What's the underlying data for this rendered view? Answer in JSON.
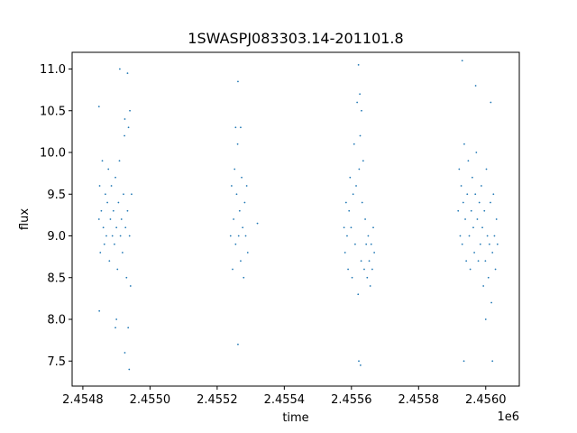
{
  "chart_data": {
    "type": "scatter",
    "title": "1SWASPJ083303.14-201101.8",
    "xlabel": "time",
    "ylabel": "flux",
    "x_offset_label": "1e6",
    "xlim": [
      2454768,
      2456100
    ],
    "ylim": [
      7.2,
      11.2
    ],
    "x_ticks": [
      2454800,
      2455000,
      2455200,
      2455400,
      2455600,
      2455800,
      2456000
    ],
    "x_tick_labels": [
      "2.4548",
      "2.4550",
      "2.4552",
      "2.4554",
      "2.4556",
      "2.4558",
      "2.4560"
    ],
    "y_ticks": [
      7.5,
      8.0,
      8.5,
      9.0,
      9.5,
      10.0,
      10.5,
      11.0
    ],
    "y_tick_labels": [
      "7.5",
      "8.0",
      "8.5",
      "9.0",
      "9.5",
      "10.0",
      "10.5",
      "11.0"
    ],
    "grid": false,
    "legend": "none",
    "series": [
      {
        "color": "#1f77b4",
        "marker": "point",
        "x": [
          2454848,
          2454850,
          2454852,
          2454855,
          2454858,
          2454861,
          2454864,
          2454867,
          2454870,
          2454873,
          2454876,
          2454879,
          2454882,
          2454885,
          2454888,
          2454891,
          2454894,
          2454897,
          2454900,
          2454903,
          2454906,
          2454909,
          2454912,
          2454915,
          2454918,
          2454921,
          2454924,
          2454927,
          2454930,
          2454933,
          2454936,
          2454939,
          2454942,
          2454945,
          2454848,
          2454849,
          2454897,
          2454910,
          2454925,
          2454933,
          2454940,
          2454900,
          2454925,
          2454935,
          2454938,
          2455240,
          2455243,
          2455246,
          2455249,
          2455252,
          2455255,
          2455258,
          2455261,
          2455264,
          2455267,
          2455270,
          2455273,
          2455276,
          2455279,
          2455282,
          2455285,
          2455288,
          2455291,
          2455320,
          2455255,
          2455262,
          2455270,
          2455262,
          2455578,
          2455581,
          2455584,
          2455587,
          2455590,
          2455593,
          2455596,
          2455599,
          2455602,
          2455605,
          2455608,
          2455611,
          2455614,
          2455617,
          2455620,
          2455623,
          2455626,
          2455629,
          2455632,
          2455635,
          2455638,
          2455641,
          2455644,
          2455647,
          2455650,
          2455653,
          2455656,
          2455659,
          2455662,
          2455665,
          2455668,
          2455621,
          2455625,
          2455630,
          2455622,
          2455627,
          2455918,
          2455921,
          2455924,
          2455927,
          2455930,
          2455933,
          2455936,
          2455939,
          2455942,
          2455945,
          2455948,
          2455951,
          2455954,
          2455957,
          2455960,
          2455963,
          2455966,
          2455969,
          2455972,
          2455975,
          2455978,
          2455981,
          2455984,
          2455987,
          2455990,
          2455993,
          2455996,
          2455999,
          2456002,
          2456005,
          2456008,
          2456011,
          2456014,
          2456017,
          2456020,
          2456023,
          2456026,
          2456029,
          2456032,
          2456035,
          2455930,
          2455970,
          2456015,
          2456000,
          2455935,
          2456020
        ],
        "y": [
          9.2,
          9.6,
          8.8,
          9.3,
          9.9,
          9.1,
          8.9,
          9.5,
          9.0,
          9.4,
          9.8,
          8.7,
          9.2,
          9.6,
          9.0,
          9.3,
          8.9,
          9.7,
          9.1,
          8.6,
          9.4,
          9.9,
          9.0,
          9.2,
          8.8,
          9.5,
          10.2,
          9.1,
          8.5,
          9.3,
          10.3,
          9.0,
          8.4,
          9.5,
          10.55,
          8.1,
          7.9,
          11.0,
          10.4,
          10.95,
          10.5,
          8.0,
          7.6,
          7.9,
          7.4,
          9.0,
          9.6,
          8.6,
          9.2,
          9.8,
          8.9,
          9.5,
          10.1,
          9.0,
          9.3,
          8.7,
          9.7,
          9.1,
          8.5,
          9.4,
          9.0,
          9.6,
          8.8,
          9.15,
          10.3,
          10.85,
          10.3,
          7.7,
          9.1,
          8.8,
          9.4,
          9.0,
          8.6,
          9.3,
          9.7,
          9.1,
          8.5,
          9.5,
          10.1,
          8.9,
          9.6,
          10.6,
          8.3,
          9.8,
          10.2,
          8.7,
          9.4,
          9.9,
          8.6,
          9.2,
          8.9,
          8.5,
          9.0,
          8.7,
          8.4,
          8.9,
          8.6,
          9.1,
          8.8,
          11.05,
          10.7,
          10.5,
          7.5,
          7.45,
          9.3,
          9.8,
          9.0,
          9.6,
          8.9,
          9.4,
          10.1,
          9.2,
          8.7,
          9.5,
          9.9,
          9.0,
          8.6,
          9.3,
          9.7,
          9.1,
          8.8,
          9.5,
          10.0,
          9.2,
          8.7,
          9.4,
          8.9,
          9.6,
          9.1,
          8.4,
          9.3,
          8.7,
          9.8,
          9.0,
          8.5,
          8.9,
          9.4,
          8.2,
          8.8,
          9.5,
          9.0,
          8.6,
          9.2,
          8.9,
          11.1,
          10.8,
          10.6,
          8.0,
          7.5,
          7.5
        ]
      }
    ]
  }
}
